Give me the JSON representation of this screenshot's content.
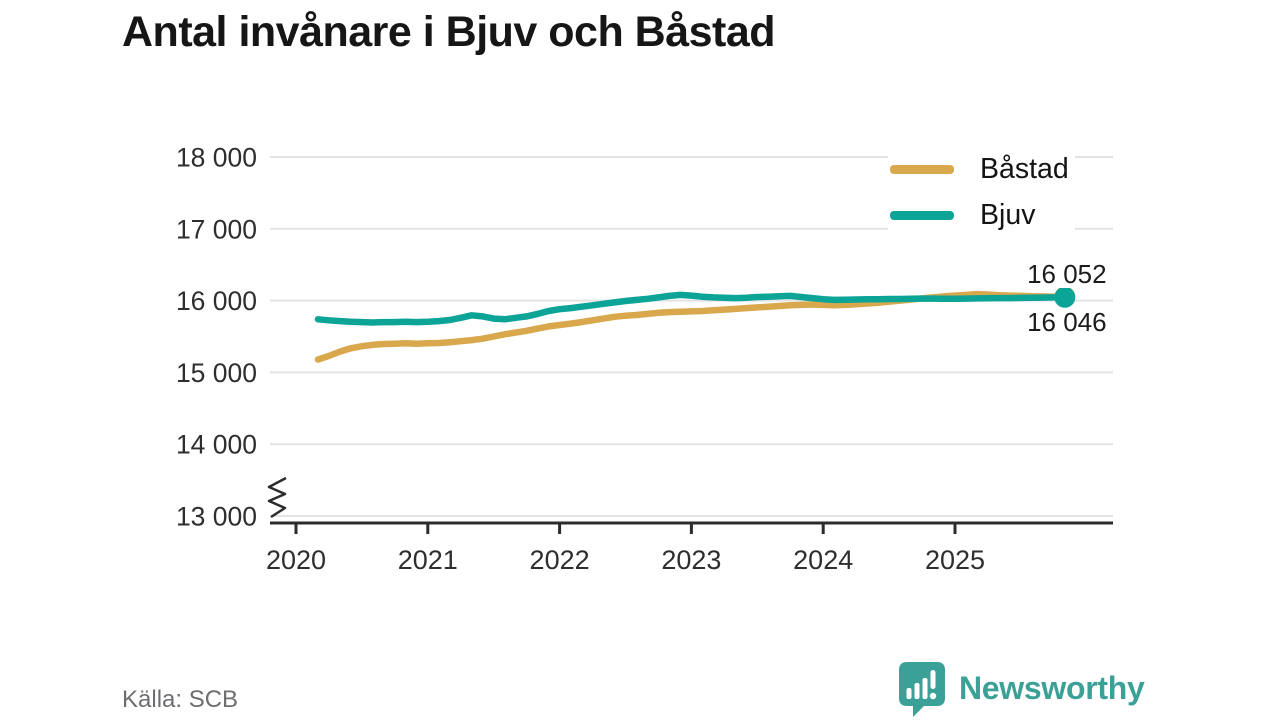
{
  "title": "Antal invånare i Bjuv och Båstad",
  "source": "Källa: SCB",
  "branding": {
    "name": "Newsworthy",
    "logo_color": "#3ba197"
  },
  "colors": {
    "bastad_line": "#d9a84d",
    "bjuv_line": "#0da498",
    "gridline": "#e3e3e3",
    "axis": "#2c2c2e",
    "tick_text": "#2e2e30",
    "source_text": "#6d6d72"
  },
  "chart_data": {
    "type": "line",
    "title": "Antal invånare i Bjuv och Båstad",
    "xlabel": "",
    "ylabel": "",
    "frequency": "monthly",
    "start": "2020-03",
    "end": "2025-11",
    "x_ticks": [
      "2020",
      "2021",
      "2022",
      "2023",
      "2024",
      "2025"
    ],
    "y_ticks": [
      "18 000",
      "17 000",
      "16 000",
      "15 000",
      "14 000",
      "13 000"
    ],
    "ylim": [
      13000,
      18000
    ],
    "axis_break": true,
    "grid": "horizontal",
    "legend_position": "top-right",
    "series": [
      {
        "name": "Båstad",
        "color": "#d9a84d",
        "end_label": "16 052",
        "end_value": 16052,
        "start_month_index": 2,
        "values": [
          15180,
          15230,
          15290,
          15335,
          15365,
          15385,
          15395,
          15400,
          15405,
          15400,
          15405,
          15410,
          15420,
          15435,
          15450,
          15470,
          15500,
          15530,
          15555,
          15580,
          15610,
          15640,
          15660,
          15680,
          15700,
          15725,
          15750,
          15775,
          15790,
          15800,
          15815,
          15830,
          15840,
          15845,
          15850,
          15855,
          15865,
          15875,
          15885,
          15895,
          15905,
          15915,
          15925,
          15935,
          15940,
          15945,
          15940,
          15935,
          15940,
          15950,
          15960,
          15970,
          15985,
          16000,
          16015,
          16030,
          16045,
          16060,
          16070,
          16080,
          16090,
          16085,
          16075,
          16070,
          16065,
          16060,
          16058,
          16055,
          16052
        ]
      },
      {
        "name": "Bjuv",
        "color": "#0da498",
        "end_label": "16 046",
        "end_value": 16046,
        "start_month_index": 2,
        "values": [
          15740,
          15725,
          15715,
          15705,
          15700,
          15695,
          15700,
          15700,
          15705,
          15700,
          15705,
          15715,
          15730,
          15760,
          15795,
          15780,
          15750,
          15740,
          15760,
          15780,
          15815,
          15855,
          15880,
          15895,
          15915,
          15935,
          15955,
          15975,
          15995,
          16010,
          16025,
          16045,
          16065,
          16080,
          16070,
          16055,
          16045,
          16040,
          16035,
          16040,
          16050,
          16055,
          16060,
          16065,
          16050,
          16035,
          16020,
          16010,
          16012,
          16015,
          16018,
          16020,
          16022,
          16022,
          16025,
          16028,
          16028,
          16025,
          16025,
          16028,
          16030,
          16032,
          16035,
          16035,
          16038,
          16040,
          16042,
          16044,
          16046
        ]
      }
    ]
  }
}
